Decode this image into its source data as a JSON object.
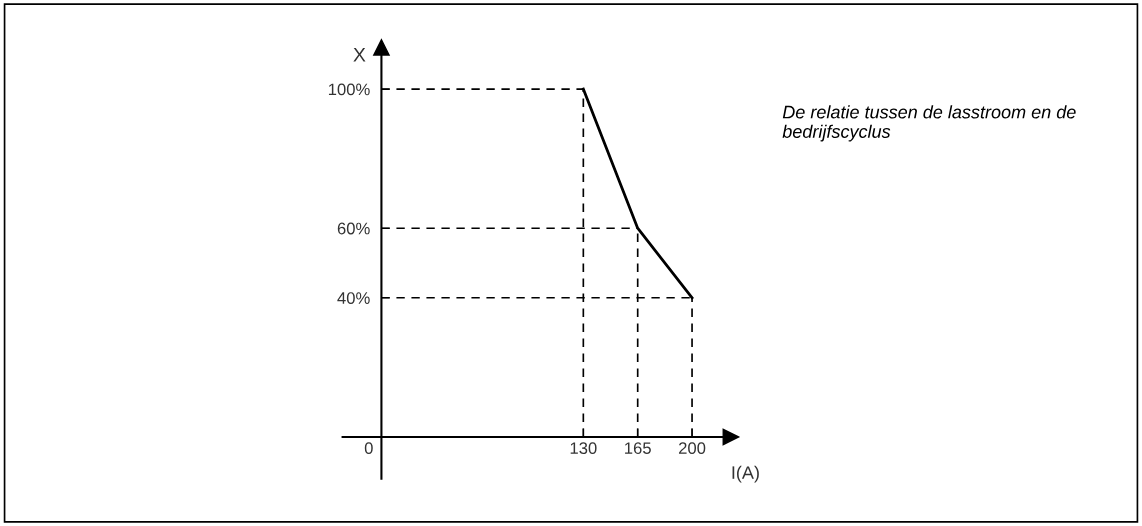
{
  "chart_data": {
    "type": "line",
    "xlabel": "I(A)",
    "ylabel": "X",
    "x": [
      130,
      165,
      200
    ],
    "series": [
      {
        "color": "#000000",
        "values": [
          100,
          60,
          40
        ]
      }
    ],
    "xlim": [
      -25,
      225
    ],
    "ylim": [
      -12,
      112
    ],
    "xticks": [
      {
        "value": 0,
        "label": "0"
      },
      130,
      165,
      200
    ],
    "yticks": [
      {
        "value": 40,
        "label": "40%"
      },
      {
        "value": 60,
        "label": "60%"
      },
      {
        "value": 100,
        "label": "100%"
      }
    ],
    "ref_lines": [
      {
        "axis": "y",
        "value": 100,
        "color": "#000000",
        "line_style": "dashed"
      },
      {
        "axis": "y",
        "value": 60,
        "color": "#000000",
        "line_style": "dashed"
      },
      {
        "axis": "y",
        "value": 40,
        "color": "#000000",
        "line_style": "dashed"
      },
      {
        "axis": "x",
        "value": 130,
        "color": "#000000",
        "line_style": "dashed"
      },
      {
        "axis": "x",
        "value": 165,
        "color": "#000000",
        "line_style": "dashed"
      },
      {
        "axis": "x",
        "value": 200,
        "color": "#000000",
        "line_style": "dashed"
      }
    ],
    "annotations": [
      "De relatie tussen de lasstroom en de bedrijfscyclus"
    ],
    "grid": false,
    "marker": "none",
    "line_style": "solid"
  }
}
